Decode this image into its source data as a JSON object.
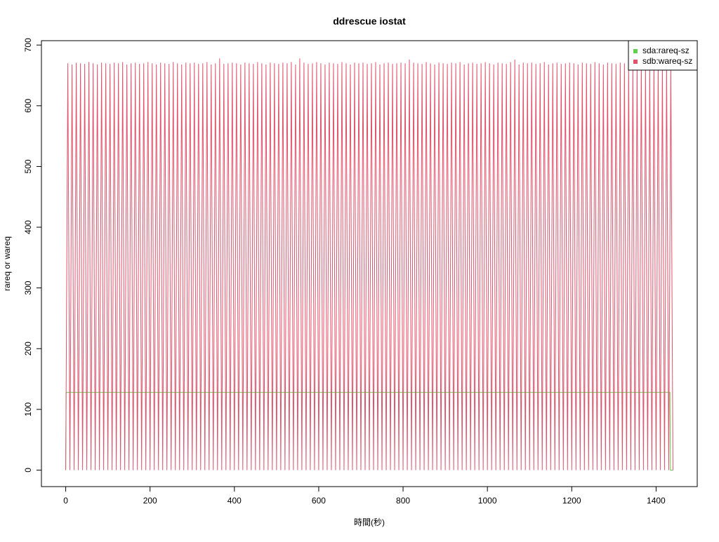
{
  "chart_data": {
    "type": "line",
    "title": "ddrescue iostat",
    "x_label": "時間(秒)",
    "y_label": "rareq or wareq",
    "xlim": [
      -57.6,
      1497.6
    ],
    "ylim": [
      -27.2,
      707.2
    ],
    "xticks": [
      0,
      200,
      400,
      600,
      800,
      1000,
      1200,
      1400
    ],
    "yticks": [
      0,
      100,
      200,
      300,
      400,
      500,
      600,
      700
    ],
    "legend": "top-right",
    "series": [
      {
        "name": "sda:rareq-sz",
        "color": "#61d04f",
        "x": [
          0,
          1,
          1433,
          1434,
          1440
        ],
        "values": [
          0,
          128,
          128,
          0,
          0
        ]
      },
      {
        "name": "sdb:wareq-sz",
        "color": "#df536b",
        "x": [
          0,
          5,
          10,
          15,
          20,
          25,
          30,
          35,
          40,
          45,
          50,
          55,
          60,
          65,
          70,
          75,
          80,
          85,
          90,
          95,
          100,
          105,
          110,
          115,
          120,
          125,
          130,
          135,
          140,
          145,
          150,
          155,
          160,
          165,
          170,
          175,
          180,
          185,
          190,
          195,
          200,
          205,
          210,
          215,
          220,
          225,
          230,
          235,
          240,
          245,
          250,
          255,
          260,
          265,
          270,
          275,
          280,
          285,
          290,
          295,
          300,
          305,
          310,
          315,
          320,
          325,
          330,
          335,
          340,
          345,
          350,
          355,
          360,
          365,
          370,
          375,
          380,
          385,
          390,
          395,
          400,
          405,
          410,
          415,
          420,
          425,
          430,
          435,
          440,
          445,
          450,
          455,
          460,
          465,
          470,
          475,
          480,
          485,
          490,
          495,
          500,
          505,
          510,
          515,
          520,
          525,
          530,
          535,
          540,
          545,
          550,
          555,
          560,
          565,
          570,
          575,
          580,
          585,
          590,
          595,
          600,
          605,
          610,
          615,
          620,
          625,
          630,
          635,
          640,
          645,
          650,
          655,
          660,
          665,
          670,
          675,
          680,
          685,
          690,
          695,
          700,
          705,
          710,
          715,
          720,
          725,
          730,
          735,
          740,
          745,
          750,
          755,
          760,
          765,
          770,
          775,
          780,
          785,
          790,
          795,
          800,
          805,
          810,
          815,
          820,
          825,
          830,
          835,
          840,
          845,
          850,
          855,
          860,
          865,
          870,
          875,
          880,
          885,
          890,
          895,
          900,
          905,
          910,
          915,
          920,
          925,
          930,
          935,
          940,
          945,
          950,
          955,
          960,
          965,
          970,
          975,
          980,
          985,
          990,
          995,
          1000,
          1005,
          1010,
          1015,
          1020,
          1025,
          1030,
          1035,
          1040,
          1045,
          1050,
          1055,
          1060,
          1065,
          1070,
          1075,
          1080,
          1085,
          1090,
          1095,
          1100,
          1105,
          1110,
          1115,
          1120,
          1125,
          1130,
          1135,
          1140,
          1145,
          1150,
          1155,
          1160,
          1165,
          1170,
          1175,
          1180,
          1185,
          1190,
          1195,
          1200,
          1205,
          1210,
          1215,
          1220,
          1225,
          1230,
          1235,
          1240,
          1245,
          1250,
          1255,
          1260,
          1265,
          1270,
          1275,
          1280,
          1285,
          1290,
          1295,
          1300,
          1305,
          1310,
          1315,
          1320,
          1325,
          1330,
          1335,
          1340,
          1345,
          1350,
          1355,
          1360,
          1365,
          1370,
          1375,
          1380,
          1385,
          1390,
          1395,
          1400,
          1405,
          1410,
          1415,
          1420,
          1425,
          1430,
          1435,
          1440
        ],
        "values": [
          0,
          670,
          0,
          668,
          0,
          671,
          0,
          670,
          0,
          669,
          0,
          672,
          0,
          670,
          0,
          668,
          0,
          671,
          0,
          670,
          0,
          669,
          0,
          671,
          0,
          670,
          0,
          672,
          0,
          668,
          0,
          670,
          0,
          671,
          0,
          669,
          0,
          670,
          0,
          672,
          0,
          670,
          0,
          668,
          0,
          671,
          0,
          670,
          0,
          669,
          0,
          672,
          0,
          670,
          0,
          668,
          0,
          671,
          0,
          670,
          0,
          671,
          0,
          669,
          0,
          670,
          0,
          672,
          0,
          668,
          0,
          670,
          0,
          678,
          0,
          669,
          0,
          670,
          0,
          671,
          0,
          670,
          0,
          668,
          0,
          671,
          0,
          670,
          0,
          669,
          0,
          672,
          0,
          670,
          0,
          668,
          0,
          671,
          0,
          670,
          0,
          669,
          0,
          671,
          0,
          670,
          0,
          672,
          0,
          668,
          0,
          678,
          0,
          671,
          0,
          669,
          0,
          670,
          0,
          672,
          0,
          670,
          0,
          668,
          0,
          671,
          0,
          670,
          0,
          669,
          0,
          672,
          0,
          670,
          0,
          668,
          0,
          671,
          0,
          670,
          0,
          671,
          0,
          669,
          0,
          670,
          0,
          672,
          0,
          668,
          0,
          670,
          0,
          671,
          0,
          669,
          0,
          670,
          0,
          671,
          0,
          670,
          0,
          676,
          0,
          671,
          0,
          670,
          0,
          669,
          0,
          672,
          0,
          670,
          0,
          668,
          0,
          671,
          0,
          670,
          0,
          669,
          0,
          671,
          0,
          670,
          0,
          672,
          0,
          668,
          0,
          670,
          0,
          671,
          0,
          669,
          0,
          670,
          0,
          672,
          0,
          670,
          0,
          668,
          0,
          671,
          0,
          670,
          0,
          669,
          0,
          672,
          0,
          676,
          0,
          668,
          0,
          671,
          0,
          670,
          0,
          671,
          0,
          669,
          0,
          670,
          0,
          672,
          0,
          668,
          0,
          670,
          0,
          671,
          0,
          669,
          0,
          670,
          0,
          671,
          0,
          670,
          0,
          668,
          0,
          671,
          0,
          670,
          0,
          669,
          0,
          672,
          0,
          670,
          0,
          668,
          0,
          671,
          0,
          670,
          0,
          669,
          0,
          671,
          0,
          670,
          0,
          672,
          0,
          668,
          0,
          670,
          0,
          671,
          0,
          669,
          0,
          670,
          0,
          672,
          0,
          670,
          0,
          668,
          0,
          671,
          0,
          669,
          0
        ]
      }
    ]
  }
}
